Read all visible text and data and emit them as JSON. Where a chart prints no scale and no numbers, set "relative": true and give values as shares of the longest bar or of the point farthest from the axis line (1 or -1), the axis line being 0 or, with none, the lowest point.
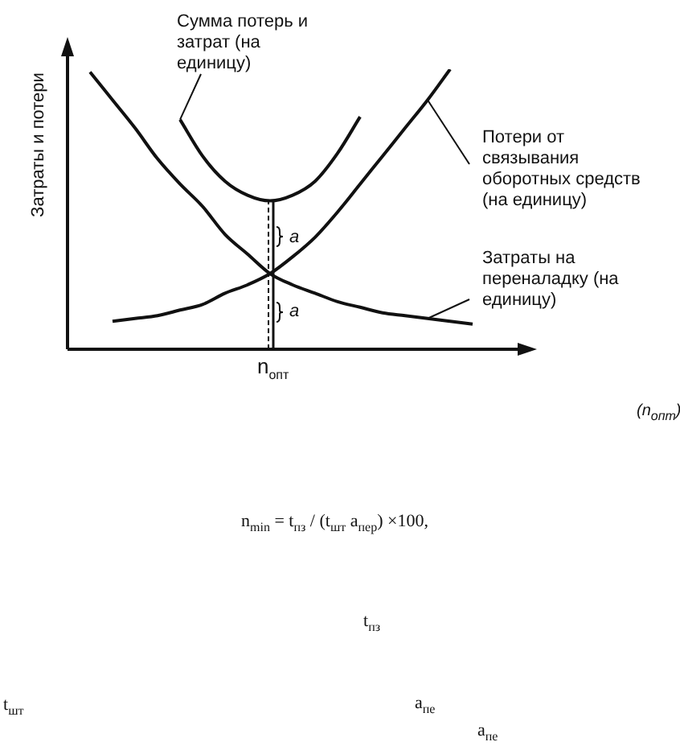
{
  "chart_data": {
    "type": "line",
    "relative": true,
    "ylabel": "Затраты и потери",
    "categories": [
      null,
      null,
      null,
      null,
      null,
      null,
      null,
      null,
      null,
      null,
      null,
      null,
      null,
      null,
      null,
      null,
      null,
      null,
      null
    ],
    "series": [
      {
        "name": "Сумма потерь и затрат (на единицу)",
        "color": "#111111",
        "values": [
          null,
          null,
          null,
          null,
          null,
          0.82,
          0.69,
          0.6,
          0.55,
          0.53,
          0.55,
          0.6,
          0.7,
          0.83,
          null,
          null,
          null,
          null,
          null
        ]
      },
      {
        "name": "Потери от связывания оборотных средств (на единицу)",
        "color": "#111111",
        "values": [
          null,
          null,
          0.1,
          0.11,
          0.12,
          0.14,
          0.16,
          0.2,
          0.23,
          0.27,
          0.33,
          0.4,
          0.49,
          0.59,
          0.69,
          0.79,
          0.89,
          1,
          null
        ]
      },
      {
        "name": "Затраты на переналадку (на единицу)",
        "color": "#111111",
        "values": [
          null,
          0.99,
          0.89,
          0.79,
          0.68,
          0.59,
          0.51,
          0.41,
          0.34,
          0.27,
          0.23,
          0.2,
          0.17,
          0.15,
          0.13,
          0.12,
          0.11,
          0.1,
          0.09
        ]
      }
    ],
    "marker": "none",
    "annotations": [
      "a",
      "a",
      "n$_{опт}$",
      "(n$_{опт}$)",
      "n$_{min}$ = t$_{пз}$ / (t$_{шт}$ a$_{пер}$) ×100,",
      "t$_{пз}$",
      "t$_{шт}$",
      "a$_{пе}$",
      "a$_{пе}$"
    ]
  }
}
